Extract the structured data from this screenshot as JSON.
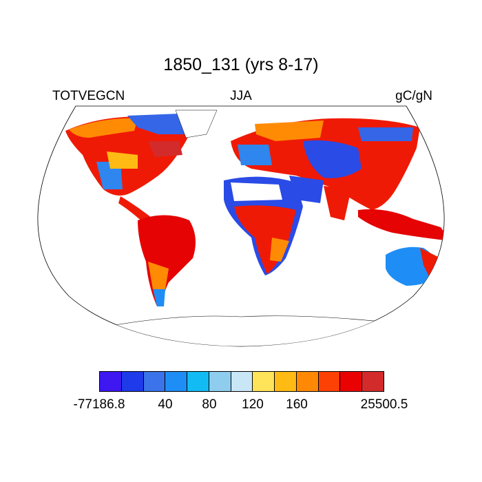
{
  "title": "1850_131 (yrs 8-17)",
  "left_label": "TOTVEGCN",
  "center_label": "JJA",
  "right_label": "gC/gN",
  "colorbar": {
    "colors": [
      "#3f17f1",
      "#1f3ae8",
      "#3a73ea",
      "#1e8ef6",
      "#12bbf4",
      "#8fcdee",
      "#c9e6f7",
      "#ffe45a",
      "#ffbb13",
      "#ff8804",
      "#fd4104",
      "#ea0202",
      "#d32b2b"
    ],
    "labels": [
      "-77186.8",
      "40",
      "80",
      "120",
      "160",
      "25500.5"
    ]
  }
}
